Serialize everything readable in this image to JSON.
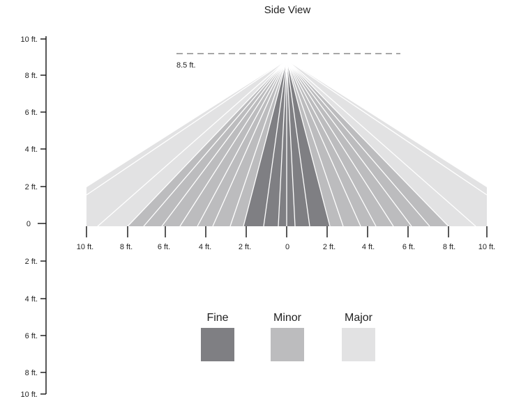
{
  "title": "Side View",
  "height_marker": {
    "label": "8.5 ft.",
    "value_ft": 8.5
  },
  "vertical_scale": {
    "labels": [
      "10 ft.",
      "8 ft.",
      "6 ft.",
      "4 ft.",
      "2 ft.",
      "0",
      "2 ft.",
      "4 ft.",
      "6 ft.",
      "8 ft.",
      "10 ft."
    ]
  },
  "horizontal_scale": {
    "labels": [
      "10 ft.",
      "8 ft.",
      "6 ft.",
      "4 ft.",
      "2 ft.",
      "0",
      "2 ft.",
      "4 ft.",
      "6 ft.",
      "8 ft.",
      "10 ft."
    ]
  },
  "legend": [
    {
      "label": "Fine",
      "color": "#7f7f83"
    },
    {
      "label": "Minor",
      "color": "#bcbcbe"
    },
    {
      "label": "Major",
      "color": "#e2e2e3"
    }
  ],
  "coverage": {
    "source_height_ft": 8.5,
    "fine_half_width_ft": 2,
    "minor_half_width_ft": 6,
    "major_half_width_ft": 10
  }
}
